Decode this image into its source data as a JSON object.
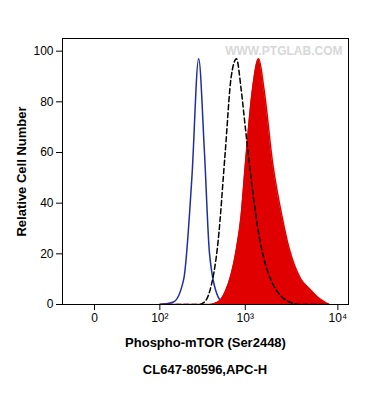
{
  "chart_data": {
    "type": "line",
    "x_label": "Phospho-mTOR (Ser2448)",
    "y_label": "Relative Cell Number",
    "caption": "CL647-80596,APC-H",
    "annotations": [
      "WWW.PTGLAB.COM"
    ],
    "x": [
      100,
      150,
      200,
      250,
      300,
      350,
      400,
      500,
      600,
      700,
      800,
      900,
      1000,
      1200,
      1400,
      1600,
      2000,
      2500,
      3000,
      4000,
      5000,
      6000,
      8000
    ],
    "series": [
      {
        "color": "#1f2f9e",
        "type": "line",
        "line_style": "solid",
        "values": [
          0,
          1,
          10,
          50,
          97,
          60,
          20,
          3,
          0,
          0,
          0,
          0,
          0,
          0,
          0,
          0,
          0,
          0,
          0,
          0,
          0,
          0,
          0
        ]
      },
      {
        "color": "#e00000",
        "type": "area",
        "line_style": "solid",
        "values": [
          0,
          0,
          0,
          0,
          0,
          0,
          0,
          1,
          5,
          12,
          22,
          35,
          55,
          85,
          97,
          85,
          55,
          35,
          22,
          10,
          6,
          3,
          0
        ]
      },
      {
        "color": "#000000",
        "type": "line",
        "line_style": "dashed",
        "values": [
          0,
          0,
          0,
          0,
          0,
          1,
          5,
          25,
          60,
          90,
          97,
          85,
          70,
          45,
          28,
          18,
          8,
          3,
          1,
          0,
          0,
          0,
          0
        ]
      }
    ],
    "log": "x",
    "xlim": [
      -30,
      13000
    ],
    "xticks": [
      0,
      {
        "value": 100,
        "label": "10²"
      },
      {
        "value": 1000,
        "label": "10³"
      },
      {
        "value": 10000,
        "label": "10⁴"
      }
    ],
    "ylim": [
      0,
      105
    ],
    "yticks": [
      0,
      20,
      40,
      60,
      80,
      100
    ],
    "grid": false
  }
}
